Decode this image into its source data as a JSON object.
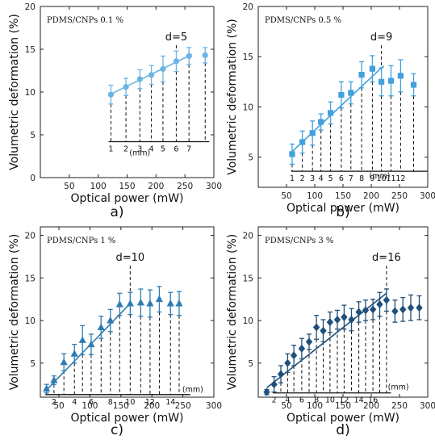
{
  "chart_data": [
    {
      "panel": "a)",
      "type": "scatter",
      "annotation": "PDMS/CNPs 0.1 %",
      "color": "#6cb4e4",
      "marker": "circle",
      "xlabel": "Optical power (mW)",
      "ylabel": "Volumetric deformation (%)",
      "xlim": [
        0,
        300
      ],
      "ylim": [
        0,
        20
      ],
      "xticks": [
        50,
        100,
        150,
        200,
        250,
        300
      ],
      "yticks": [
        0,
        5,
        10,
        15,
        20
      ],
      "x": [
        122,
        148,
        172,
        192,
        212,
        235,
        257,
        285
      ],
      "y": [
        9.7,
        10.6,
        11.5,
        12.0,
        12.7,
        13.6,
        14.2,
        14.3
      ],
      "err": [
        1.1,
        1.0,
        1.1,
        1.1,
        1.5,
        1.2,
        1.0,
        0.9
      ],
      "fit": {
        "x": [
          120,
          262
        ],
        "y": [
          9.7,
          14.4
        ]
      },
      "d_label": "d=5",
      "d_x": 235,
      "scale_y": 4.2,
      "scale_x": [
        118,
        292
      ],
      "scale_ticks": [
        {
          "x": 122,
          "label": "1"
        },
        {
          "x": 148,
          "label": "2"
        },
        {
          "x": 172,
          "label": "3"
        },
        {
          "x": 192,
          "label": "4"
        },
        {
          "x": 212,
          "label": "5"
        },
        {
          "x": 235,
          "label": "6"
        },
        {
          "x": 257,
          "label": "7"
        }
      ],
      "mm_label": "(mm)",
      "mm_pos": [
        172,
        2.6
      ]
    },
    {
      "panel": "b)",
      "type": "scatter",
      "annotation": "PDMS/CNPs 0.5 %",
      "color": "#42a0dc",
      "marker": "square",
      "xlabel": "Optical power (mW)",
      "ylabel": "Volumetric deformation (%)",
      "xlim": [
        0,
        300
      ],
      "ylim": [
        2,
        20
      ],
      "xticks": [
        50,
        100,
        150,
        200,
        250,
        300
      ],
      "yticks": [
        5,
        10,
        15,
        20
      ],
      "x": [
        60,
        78,
        96,
        111,
        128,
        147,
        164,
        183,
        202,
        218,
        235,
        252,
        275
      ],
      "y": [
        5.3,
        6.5,
        7.4,
        8.5,
        9.4,
        11.2,
        11.4,
        13.2,
        13.8,
        12.5,
        12.6,
        13.1,
        12.2
      ],
      "err": [
        1.0,
        1.1,
        1.2,
        0.8,
        1.1,
        1.3,
        1.1,
        1.3,
        1.3,
        1.4,
        1.5,
        1.6,
        1.1
      ],
      "fit": {
        "x": [
          55,
          222
        ],
        "y": [
          5.3,
          14.1
        ]
      },
      "d_label": "d=9",
      "d_x": 218,
      "scale_y": 3.6,
      "scale_x": [
        58,
        300
      ],
      "scale_ticks": [
        {
          "x": 60,
          "label": "1"
        },
        {
          "x": 78,
          "label": "2"
        },
        {
          "x": 96,
          "label": "3"
        },
        {
          "x": 111,
          "label": "4"
        },
        {
          "x": 128,
          "label": "5"
        },
        {
          "x": 147,
          "label": "6"
        },
        {
          "x": 164,
          "label": "7"
        },
        {
          "x": 183,
          "label": "8"
        },
        {
          "x": 202,
          "label": "9"
        },
        {
          "x": 218,
          "label": "10"
        },
        {
          "x": 235,
          "label": "11"
        },
        {
          "x": 252,
          "label": "12"
        }
      ],
      "mm_label": "(mm)",
      "mm_pos": [
        215,
        2.9
      ]
    },
    {
      "panel": "c)",
      "type": "scatter",
      "annotation": "PDMS/CNPs  1 %",
      "color": "#2e7cb3",
      "marker": "triangle",
      "xlabel": "Optical power (mW)",
      "ylabel": "Volumetric deformation (%)",
      "xlim": [
        20,
        300
      ],
      "ylim": [
        1,
        21
      ],
      "xticks": [
        50,
        100,
        150,
        200,
        250,
        300
      ],
      "yticks": [
        5,
        10,
        15,
        20
      ],
      "x": [
        30,
        42,
        58,
        75,
        88,
        102,
        118,
        133,
        148,
        165,
        182,
        197,
        212,
        230,
        244
      ],
      "y": [
        2.0,
        3.0,
        5.1,
        6.1,
        7.7,
        7.2,
        9.2,
        10.0,
        11.9,
        12.0,
        12.1,
        12.0,
        12.5,
        12.0,
        12.0
      ],
      "err": [
        0.5,
        0.5,
        1.0,
        1.1,
        1.7,
        1.2,
        1.3,
        1.3,
        1.3,
        1.3,
        1.6,
        1.6,
        1.5,
        1.3,
        1.4
      ],
      "fit": {
        "x": [
          28,
          165
        ],
        "y": [
          1.7,
          12.0
        ]
      },
      "d_label": "d=10",
      "d_x": 165,
      "scale_y": 1.3,
      "scale_x": [
        28,
        262
      ],
      "scale_ticks": [
        {
          "x": 42,
          "label": "2"
        },
        {
          "x": 75,
          "label": "4"
        },
        {
          "x": 102,
          "label": "6"
        },
        {
          "x": 133,
          "label": "8"
        },
        {
          "x": 165,
          "label": "10"
        },
        {
          "x": 197,
          "label": "12"
        },
        {
          "x": 230,
          "label": "14"
        }
      ],
      "mm_label": "(mm)",
      "mm_pos": [
        266,
        1.6
      ]
    },
    {
      "panel": "d)",
      "type": "scatter",
      "annotation": "PDMS/CNPs  3 %",
      "color": "#1f4f7a",
      "marker": "diamond",
      "xlabel": "Optical power (mW)",
      "ylabel": "Volumetric deformation (%)",
      "xlim": [
        0,
        300
      ],
      "ylim": [
        1,
        21
      ],
      "xticks": [
        50,
        100,
        150,
        200,
        250,
        300
      ],
      "yticks": [
        5,
        10,
        15,
        20
      ],
      "x": [
        15,
        28,
        40,
        52,
        63,
        77,
        90,
        103,
        115,
        127,
        140,
        152,
        165,
        178,
        190,
        203,
        215,
        227,
        242,
        256,
        270,
        285
      ],
      "y": [
        1.6,
        2.5,
        3.7,
        5.0,
        5.9,
        6.7,
        7.5,
        9.2,
        8.8,
        9.8,
        10.1,
        10.4,
        10.1,
        11.0,
        11.2,
        11.3,
        11.9,
        12.4,
        11.1,
        11.3,
        11.5,
        11.5
      ],
      "err": [
        0.3,
        0.9,
        1.0,
        1.1,
        1.2,
        1.2,
        0.9,
        1.4,
        1.3,
        1.2,
        1.1,
        1.4,
        1.3,
        1.2,
        1.2,
        1.2,
        1.4,
        1.3,
        1.3,
        1.4,
        1.5,
        1.4
      ],
      "fit": {
        "x": [
          15,
          227
        ],
        "y": [
          2.1,
          13.2
        ]
      },
      "d_label": "d=16",
      "d_x": 227,
      "scale_y": 1.5,
      "scale_x": [
        26,
        235
      ],
      "scale_ticks": [
        {
          "x": 28,
          "label": "2"
        },
        {
          "x": 52,
          "label": "4"
        },
        {
          "x": 77,
          "label": "6"
        },
        {
          "x": 103,
          "label": "8"
        },
        {
          "x": 127,
          "label": "10"
        },
        {
          "x": 152,
          "label": "12"
        },
        {
          "x": 178,
          "label": "14"
        },
        {
          "x": 203,
          "label": "16"
        }
      ],
      "mm_label": "(mm)",
      "mm_pos": [
        248,
        1.9
      ]
    }
  ]
}
